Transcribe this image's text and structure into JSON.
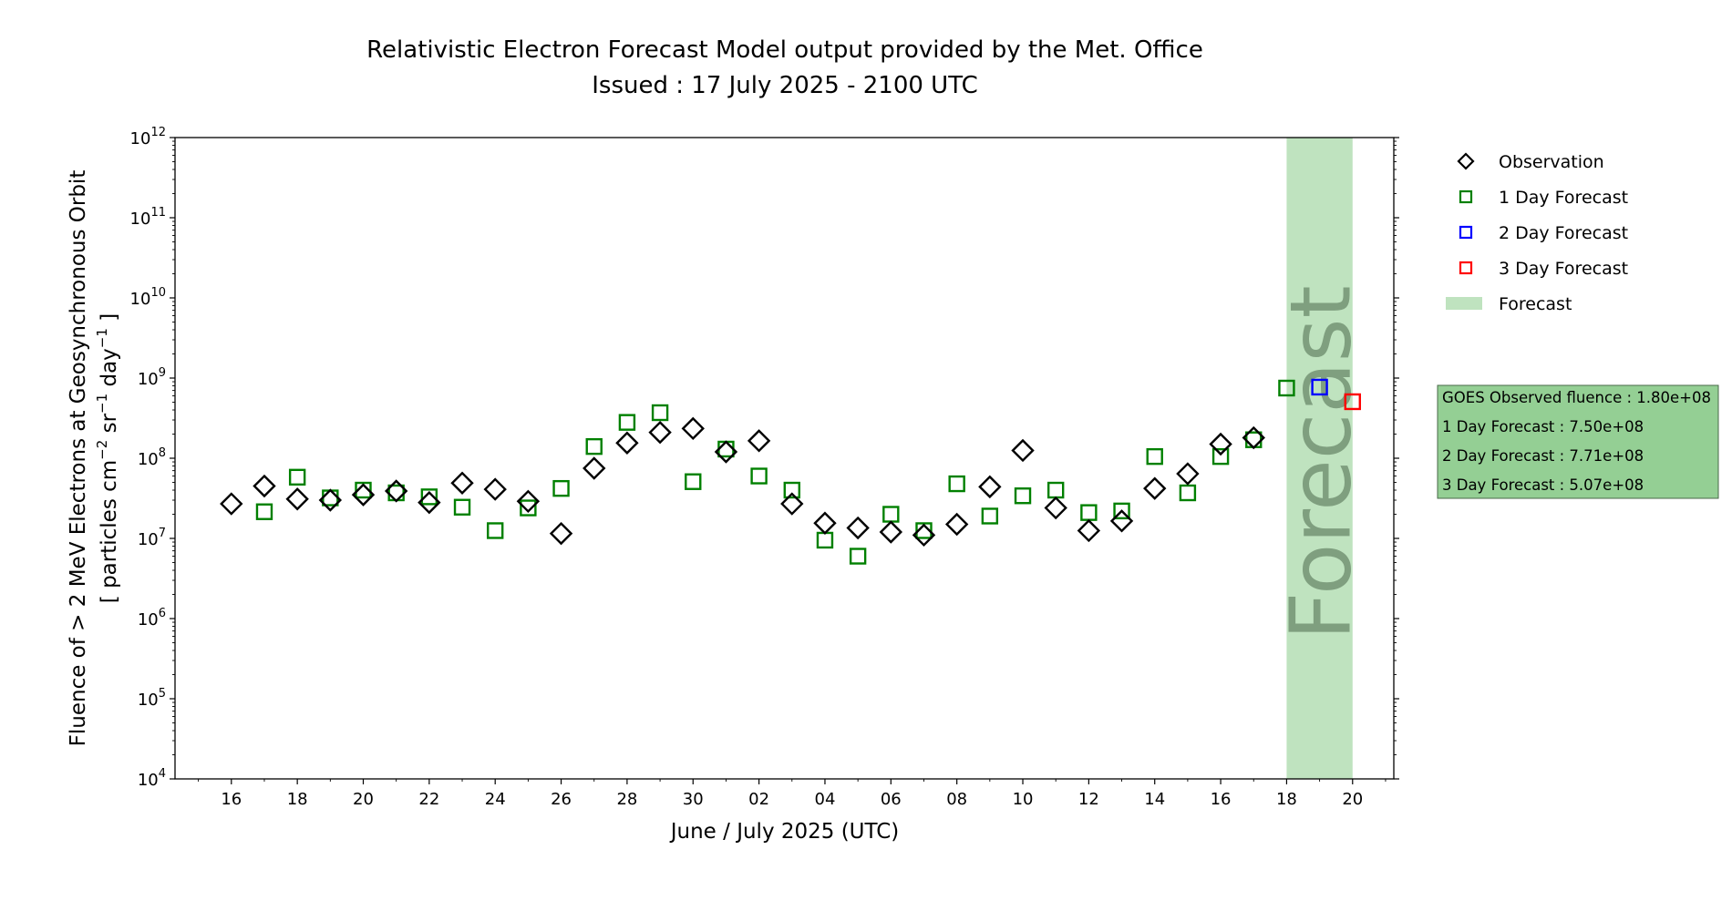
{
  "chart_data": {
    "type": "scatter",
    "title": "Relativistic Electron Forecast Model output provided by the Met. Office",
    "subtitle": "Issued : 17 July 2025 - 2100 UTC",
    "xlabel": "June / July 2025 (UTC)",
    "ylabel_line1": "Fluence of > 2 MeV Electrons at Geosynchronous Orbit",
    "ylabel_line2": "[ particles cm",
    "ylabel_sup1": "−2",
    "ylabel_line3": " sr",
    "ylabel_sup2": "−1",
    "ylabel_line4": " day",
    "ylabel_sup3": "−1",
    "ylabel_line5": " ]",
    "y_scale": "log",
    "ylim": [
      10000,
      1000000000000
    ],
    "xlim": [
      "2025-06-14T07:00",
      "2025-07-21T06:00"
    ],
    "y_ticks": [
      {
        "base": "10",
        "exp": "4",
        "value": 10000
      },
      {
        "base": "10",
        "exp": "5",
        "value": 100000
      },
      {
        "base": "10",
        "exp": "6",
        "value": 1000000
      },
      {
        "base": "10",
        "exp": "7",
        "value": 10000000
      },
      {
        "base": "10",
        "exp": "8",
        "value": 100000000
      },
      {
        "base": "10",
        "exp": "9",
        "value": 1000000000
      },
      {
        "base": "10",
        "exp": "10",
        "value": 10000000000
      },
      {
        "base": "10",
        "exp": "11",
        "value": 100000000000
      },
      {
        "base": "10",
        "exp": "12",
        "value": 1000000000000
      }
    ],
    "x_ticks": [
      {
        "label": "16",
        "date": "2025-06-16"
      },
      {
        "label": "18",
        "date": "2025-06-18"
      },
      {
        "label": "20",
        "date": "2025-06-20"
      },
      {
        "label": "22",
        "date": "2025-06-22"
      },
      {
        "label": "24",
        "date": "2025-06-24"
      },
      {
        "label": "26",
        "date": "2025-06-26"
      },
      {
        "label": "28",
        "date": "2025-06-28"
      },
      {
        "label": "30",
        "date": "2025-06-30"
      },
      {
        "label": "02",
        "date": "2025-07-02"
      },
      {
        "label": "04",
        "date": "2025-07-04"
      },
      {
        "label": "06",
        "date": "2025-07-06"
      },
      {
        "label": "08",
        "date": "2025-07-08"
      },
      {
        "label": "10",
        "date": "2025-07-10"
      },
      {
        "label": "12",
        "date": "2025-07-12"
      },
      {
        "label": "14",
        "date": "2025-07-14"
      },
      {
        "label": "16",
        "date": "2025-07-16"
      },
      {
        "label": "18",
        "date": "2025-07-18"
      },
      {
        "label": "20",
        "date": "2025-07-20"
      }
    ],
    "series": [
      {
        "name": "Observation",
        "marker": "diamond",
        "color": "#000000",
        "points": [
          {
            "date": "2025-06-16",
            "value": 27000000
          },
          {
            "date": "2025-06-17",
            "value": 45000000
          },
          {
            "date": "2025-06-18",
            "value": 31000000
          },
          {
            "date": "2025-06-19",
            "value": 30000000
          },
          {
            "date": "2025-06-20",
            "value": 35000000
          },
          {
            "date": "2025-06-21",
            "value": 39000000
          },
          {
            "date": "2025-06-22",
            "value": 28000000
          },
          {
            "date": "2025-06-23",
            "value": 49000000
          },
          {
            "date": "2025-06-24",
            "value": 41000000
          },
          {
            "date": "2025-06-25",
            "value": 29000000
          },
          {
            "date": "2025-06-26",
            "value": 11500000
          },
          {
            "date": "2025-06-27",
            "value": 75000000
          },
          {
            "date": "2025-06-28",
            "value": 155000000
          },
          {
            "date": "2025-06-29",
            "value": 210000000
          },
          {
            "date": "2025-06-30",
            "value": 235000000
          },
          {
            "date": "2025-07-01",
            "value": 120000000
          },
          {
            "date": "2025-07-02",
            "value": 165000000
          },
          {
            "date": "2025-07-03",
            "value": 27000000
          },
          {
            "date": "2025-07-04",
            "value": 15500000
          },
          {
            "date": "2025-07-05",
            "value": 13500000
          },
          {
            "date": "2025-07-06",
            "value": 12000000
          },
          {
            "date": "2025-07-07",
            "value": 11000000
          },
          {
            "date": "2025-07-08",
            "value": 15000000
          },
          {
            "date": "2025-07-09",
            "value": 44000000
          },
          {
            "date": "2025-07-10",
            "value": 125000000
          },
          {
            "date": "2025-07-11",
            "value": 24000000
          },
          {
            "date": "2025-07-12",
            "value": 12500000
          },
          {
            "date": "2025-07-13",
            "value": 16500000
          },
          {
            "date": "2025-07-14",
            "value": 42000000
          },
          {
            "date": "2025-07-15",
            "value": 64000000
          },
          {
            "date": "2025-07-16",
            "value": 150000000
          },
          {
            "date": "2025-07-17",
            "value": 180000000
          }
        ]
      },
      {
        "name": "1 Day Forecast",
        "marker": "square",
        "color": "#008000",
        "points": [
          {
            "date": "2025-06-17",
            "value": 21500000
          },
          {
            "date": "2025-06-18",
            "value": 58000000
          },
          {
            "date": "2025-06-19",
            "value": 32000000
          },
          {
            "date": "2025-06-20",
            "value": 40000000
          },
          {
            "date": "2025-06-21",
            "value": 37000000
          },
          {
            "date": "2025-06-22",
            "value": 33000000
          },
          {
            "date": "2025-06-23",
            "value": 24500000
          },
          {
            "date": "2025-06-24",
            "value": 12500000
          },
          {
            "date": "2025-06-25",
            "value": 24000000
          },
          {
            "date": "2025-06-26",
            "value": 42000000
          },
          {
            "date": "2025-06-27",
            "value": 140000000
          },
          {
            "date": "2025-06-28",
            "value": 280000000
          },
          {
            "date": "2025-06-29",
            "value": 370000000
          },
          {
            "date": "2025-06-30",
            "value": 51000000
          },
          {
            "date": "2025-07-01",
            "value": 130000000
          },
          {
            "date": "2025-07-02",
            "value": 60000000
          },
          {
            "date": "2025-07-03",
            "value": 40000000
          },
          {
            "date": "2025-07-04",
            "value": 9500000
          },
          {
            "date": "2025-07-05",
            "value": 6000000
          },
          {
            "date": "2025-07-06",
            "value": 20000000
          },
          {
            "date": "2025-07-07",
            "value": 12500000
          },
          {
            "date": "2025-07-08",
            "value": 48000000
          },
          {
            "date": "2025-07-09",
            "value": 19000000
          },
          {
            "date": "2025-07-10",
            "value": 34000000
          },
          {
            "date": "2025-07-11",
            "value": 40000000
          },
          {
            "date": "2025-07-12",
            "value": 21000000
          },
          {
            "date": "2025-07-13",
            "value": 22000000
          },
          {
            "date": "2025-07-14",
            "value": 105000000
          },
          {
            "date": "2025-07-15",
            "value": 37000000
          },
          {
            "date": "2025-07-16",
            "value": 105000000
          },
          {
            "date": "2025-07-17",
            "value": 170000000
          },
          {
            "date": "2025-07-18",
            "value": 750000000
          }
        ]
      },
      {
        "name": "2 Day Forecast",
        "marker": "square",
        "color": "#0000ff",
        "points": [
          {
            "date": "2025-07-19",
            "value": 771000000
          }
        ]
      },
      {
        "name": "3 Day Forecast",
        "marker": "square",
        "color": "#ff0000",
        "points": [
          {
            "date": "2025-07-20",
            "value": 507000000
          }
        ]
      }
    ],
    "forecast_band": {
      "label": "Forecast",
      "start": "2025-07-18",
      "end": "2025-07-20",
      "color": "#bfe3bf",
      "text_color": "#7f9f7f"
    },
    "legend": {
      "placement": "outside-top-right",
      "entries": [
        "Observation",
        "1 Day Forecast",
        "2 Day Forecast",
        "3 Day Forecast",
        "Forecast"
      ]
    },
    "info_box": {
      "background": "#94cf94",
      "lines": [
        "GOES Observed fluence : 1.80e+08",
        "1 Day Forecast : 7.50e+08",
        "2 Day Forecast : 7.71e+08",
        "3 Day Forecast : 5.07e+08"
      ]
    },
    "grid": false
  }
}
